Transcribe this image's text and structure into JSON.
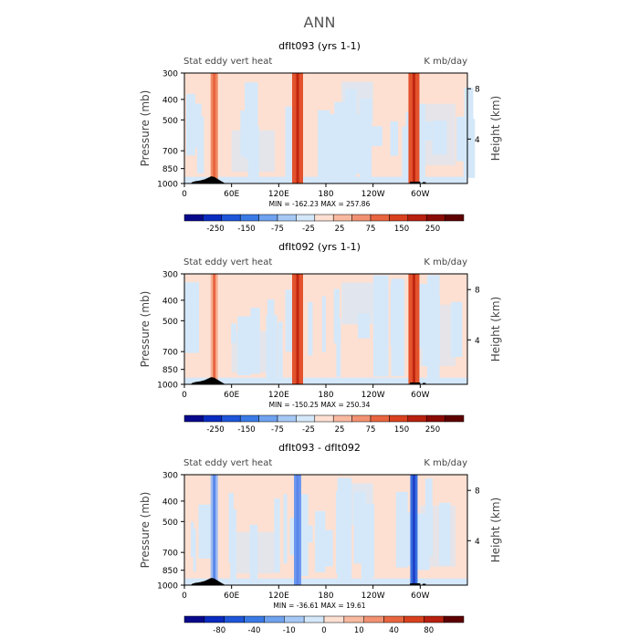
{
  "figure_title": "ANN",
  "colors": {
    "neutral_positive": "#fde0d2",
    "neutral_negative": "#d4e8fa",
    "ocean_background": "#fbe6d8",
    "topography": "#000000"
  },
  "chart_data": [
    {
      "type": "heatmap",
      "title": "dfIt093 (yrs 1-1)",
      "left_label": "Stat eddy vert heat",
      "right_label": "K mb/day",
      "ylabel": "Pressure (mb)",
      "y2label": "Height (km)",
      "y_ticks": [
        300,
        400,
        500,
        700,
        850,
        1000
      ],
      "y2_ticks": [
        8,
        4
      ],
      "x_ticks": [
        "0",
        "60E",
        "120E",
        "180",
        "120W",
        "60W"
      ],
      "stats": "MIN = -162.23   MAX = 257.86",
      "colorbar": {
        "labels": [
          "-250",
          "-150",
          "-75",
          "-25",
          "25",
          "75",
          "150",
          "250"
        ],
        "colors": [
          "#08088c",
          "#0a2bbf",
          "#1e55d9",
          "#3a7ae6",
          "#6fa2ef",
          "#a6c8f5",
          "#d4e8fa",
          "#fde0d2",
          "#f8b9a0",
          "#f29172",
          "#e8653f",
          "#d9411e",
          "#b8200f",
          "#8a0a05",
          "#5e0000"
        ]
      },
      "bands": [
        {
          "lon": 38,
          "strength": 0.55
        },
        {
          "lon": 144,
          "strength": 1.0
        },
        {
          "lon": 292,
          "strength": 0.95
        }
      ]
    },
    {
      "type": "heatmap",
      "title": "dfIt092 (yrs 1-1)",
      "left_label": "Stat eddy vert heat",
      "right_label": "K mb/day",
      "ylabel": "Pressure (mb)",
      "y2label": "Height (km)",
      "y_ticks": [
        300,
        400,
        500,
        700,
        850,
        1000
      ],
      "y2_ticks": [
        8,
        4
      ],
      "x_ticks": [
        "0",
        "60E",
        "120E",
        "180",
        "120W",
        "60W"
      ],
      "stats": "MIN = -150.25   MAX = 250.34",
      "colorbar": {
        "labels": [
          "-250",
          "-150",
          "-75",
          "-25",
          "25",
          "75",
          "150",
          "250"
        ],
        "colors": [
          "#08088c",
          "#0a2bbf",
          "#1e55d9",
          "#3a7ae6",
          "#6fa2ef",
          "#a6c8f5",
          "#d4e8fa",
          "#fde0d2",
          "#f8b9a0",
          "#f29172",
          "#e8653f",
          "#d9411e",
          "#b8200f",
          "#8a0a05",
          "#5e0000"
        ]
      },
      "bands": [
        {
          "lon": 38,
          "strength": 0.5
        },
        {
          "lon": 144,
          "strength": 1.0
        },
        {
          "lon": 292,
          "strength": 0.9
        }
      ]
    },
    {
      "type": "heatmap",
      "title": "dfIt093 - dfIt092",
      "left_label": "Stat eddy vert heat",
      "right_label": "K mb/day",
      "ylabel": "Pressure (mb)",
      "y2label": "Height (km)",
      "y_ticks": [
        300,
        400,
        500,
        700,
        850,
        1000
      ],
      "y2_ticks": [
        8,
        4
      ],
      "x_ticks": [
        "0",
        "60E",
        "120E",
        "180",
        "120W",
        "60W"
      ],
      "stats": "MIN = -36.61   MAX = 19.61",
      "colorbar": {
        "labels": [
          "-80",
          "-40",
          "-10",
          "0",
          "10",
          "40",
          "80"
        ],
        "colors": [
          "#08088c",
          "#0a2bbf",
          "#1e55d9",
          "#3a7ae6",
          "#6fa2ef",
          "#a6c8f5",
          "#d4e8fa",
          "#fde0d2",
          "#f8b9a0",
          "#f29172",
          "#e8653f",
          "#d9411e",
          "#b8200f",
          "#5e0000"
        ]
      },
      "bands": [
        {
          "lon": 38,
          "strength": -0.3
        },
        {
          "lon": 144,
          "strength": -0.45
        },
        {
          "lon": 292,
          "strength": -0.8
        }
      ]
    }
  ]
}
